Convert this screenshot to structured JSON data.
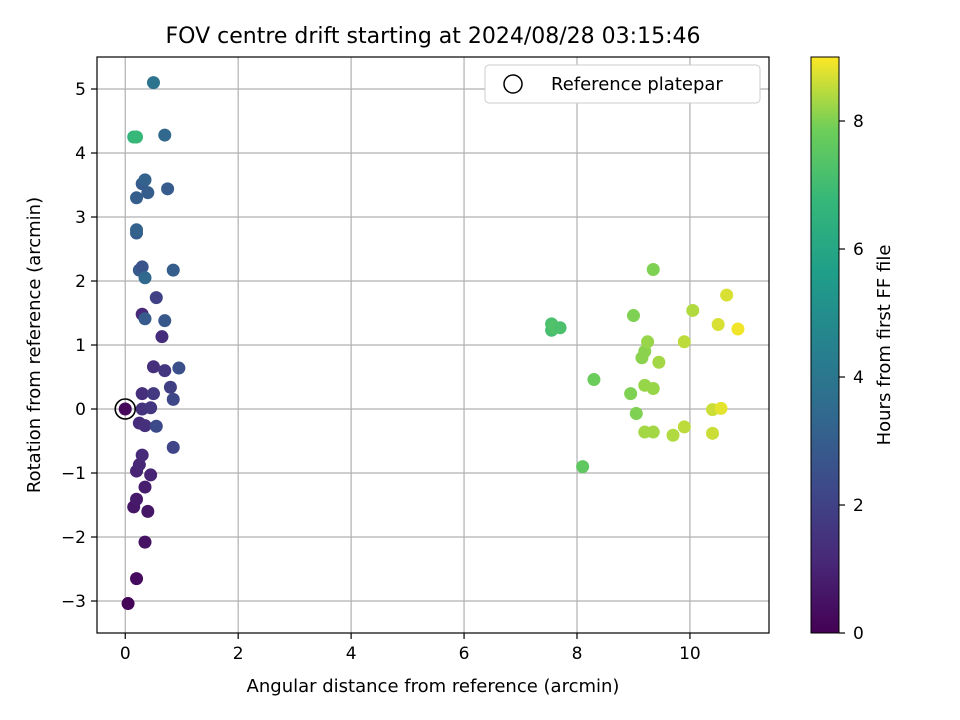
{
  "chart_data": {
    "type": "scatter",
    "title": "FOV centre drift starting at 2024/08/28 03:15:46",
    "xlabel": "Angular distance from reference (arcmin)",
    "ylabel": "Rotation from reference (arcmin)",
    "xlim": [
      -0.5,
      11.4
    ],
    "ylim": [
      -3.5,
      5.5
    ],
    "xticks": [
      0,
      2,
      4,
      6,
      8,
      10
    ],
    "yticks": [
      -3,
      -2,
      -1,
      0,
      1,
      2,
      3,
      4,
      5
    ],
    "grid": true,
    "legend": {
      "position": "top-right",
      "entries": [
        "Reference platepar"
      ]
    },
    "reference": {
      "x": 0,
      "y": 0
    },
    "colorbar": {
      "label": "Hours from first FF file",
      "range": [
        0,
        9
      ],
      "ticks": [
        0,
        2,
        4,
        6,
        8
      ],
      "colormap": "viridis"
    },
    "series": [
      {
        "points": [
          {
            "x": 0.0,
            "y": 0.0,
            "c": 0.2
          },
          {
            "x": 0.05,
            "y": -3.04,
            "c": 0.1
          },
          {
            "x": 0.2,
            "y": -2.65,
            "c": 0.3
          },
          {
            "x": 0.35,
            "y": -2.08,
            "c": 0.5
          },
          {
            "x": 0.4,
            "y": -1.6,
            "c": 0.6
          },
          {
            "x": 0.15,
            "y": -1.53,
            "c": 0.6
          },
          {
            "x": 0.2,
            "y": -1.41,
            "c": 0.7
          },
          {
            "x": 0.35,
            "y": -1.22,
            "c": 0.8
          },
          {
            "x": 0.45,
            "y": -1.03,
            "c": 1.0
          },
          {
            "x": 0.2,
            "y": -0.97,
            "c": 1.0
          },
          {
            "x": 0.25,
            "y": -0.87,
            "c": 1.1
          },
          {
            "x": 0.3,
            "y": -0.72,
            "c": 1.2
          },
          {
            "x": 0.25,
            "y": -0.22,
            "c": 1.3
          },
          {
            "x": 0.35,
            "y": -0.26,
            "c": 1.4
          },
          {
            "x": 0.3,
            "y": 0.0,
            "c": 1.5
          },
          {
            "x": 0.45,
            "y": 0.02,
            "c": 1.6
          },
          {
            "x": 0.3,
            "y": 0.24,
            "c": 1.4
          },
          {
            "x": 0.5,
            "y": 0.24,
            "c": 1.7
          },
          {
            "x": 0.55,
            "y": -0.27,
            "c": 2.3
          },
          {
            "x": 0.85,
            "y": -0.6,
            "c": 2.1
          },
          {
            "x": 0.8,
            "y": 0.34,
            "c": 1.9
          },
          {
            "x": 0.85,
            "y": 0.15,
            "c": 2.2
          },
          {
            "x": 0.5,
            "y": 0.66,
            "c": 1.4
          },
          {
            "x": 0.7,
            "y": 0.6,
            "c": 1.6
          },
          {
            "x": 0.95,
            "y": 0.64,
            "c": 2.5
          },
          {
            "x": 0.65,
            "y": 1.13,
            "c": 1.3
          },
          {
            "x": 0.3,
            "y": 1.48,
            "c": 1.2
          },
          {
            "x": 0.35,
            "y": 1.41,
            "c": 2.9
          },
          {
            "x": 0.7,
            "y": 1.38,
            "c": 2.8
          },
          {
            "x": 0.55,
            "y": 1.74,
            "c": 2.0
          },
          {
            "x": 0.25,
            "y": 2.17,
            "c": 2.9
          },
          {
            "x": 0.3,
            "y": 2.22,
            "c": 2.6
          },
          {
            "x": 0.35,
            "y": 2.05,
            "c": 3.4
          },
          {
            "x": 0.85,
            "y": 2.17,
            "c": 3.0
          },
          {
            "x": 0.2,
            "y": 2.75,
            "c": 3.0
          },
          {
            "x": 0.2,
            "y": 2.8,
            "c": 3.2
          },
          {
            "x": 0.2,
            "y": 3.3,
            "c": 3.0
          },
          {
            "x": 0.3,
            "y": 3.52,
            "c": 2.9
          },
          {
            "x": 0.35,
            "y": 3.58,
            "c": 3.2
          },
          {
            "x": 0.4,
            "y": 3.38,
            "c": 3.0
          },
          {
            "x": 0.75,
            "y": 3.44,
            "c": 2.9
          },
          {
            "x": 0.7,
            "y": 4.28,
            "c": 3.4
          },
          {
            "x": 0.5,
            "y": 5.1,
            "c": 3.9
          },
          {
            "x": 0.15,
            "y": 4.25,
            "c": 6.6
          },
          {
            "x": 0.2,
            "y": 4.25,
            "c": 6.8
          },
          {
            "x": 7.55,
            "y": 1.23,
            "c": 7.1
          },
          {
            "x": 7.55,
            "y": 1.33,
            "c": 7.2
          },
          {
            "x": 7.6,
            "y": 1.28,
            "c": 7.3
          },
          {
            "x": 7.7,
            "y": 1.27,
            "c": 7.2
          },
          {
            "x": 8.1,
            "y": -0.9,
            "c": 7.6
          },
          {
            "x": 8.3,
            "y": 0.46,
            "c": 7.8
          },
          {
            "x": 9.0,
            "y": 1.46,
            "c": 8.0
          },
          {
            "x": 8.95,
            "y": 0.24,
            "c": 8.0
          },
          {
            "x": 9.05,
            "y": -0.07,
            "c": 8.0
          },
          {
            "x": 9.15,
            "y": 0.8,
            "c": 8.1
          },
          {
            "x": 9.2,
            "y": 0.9,
            "c": 8.1
          },
          {
            "x": 9.25,
            "y": 1.05,
            "c": 8.2
          },
          {
            "x": 9.2,
            "y": 0.37,
            "c": 8.2
          },
          {
            "x": 9.35,
            "y": 0.32,
            "c": 8.2
          },
          {
            "x": 9.45,
            "y": 0.73,
            "c": 8.3
          },
          {
            "x": 9.35,
            "y": 2.18,
            "c": 8.0
          },
          {
            "x": 9.2,
            "y": -0.36,
            "c": 8.3
          },
          {
            "x": 9.35,
            "y": -0.36,
            "c": 8.3
          },
          {
            "x": 9.7,
            "y": -0.41,
            "c": 8.4
          },
          {
            "x": 9.9,
            "y": 1.05,
            "c": 8.5
          },
          {
            "x": 9.9,
            "y": -0.28,
            "c": 8.5
          },
          {
            "x": 10.05,
            "y": 1.54,
            "c": 8.4
          },
          {
            "x": 10.4,
            "y": -0.01,
            "c": 8.6
          },
          {
            "x": 10.4,
            "y": -0.38,
            "c": 8.6
          },
          {
            "x": 10.5,
            "y": 1.32,
            "c": 8.7
          },
          {
            "x": 10.55,
            "y": 0.01,
            "c": 8.8
          },
          {
            "x": 10.65,
            "y": 1.78,
            "c": 8.7
          },
          {
            "x": 10.85,
            "y": 1.25,
            "c": 8.9
          }
        ]
      }
    ]
  }
}
